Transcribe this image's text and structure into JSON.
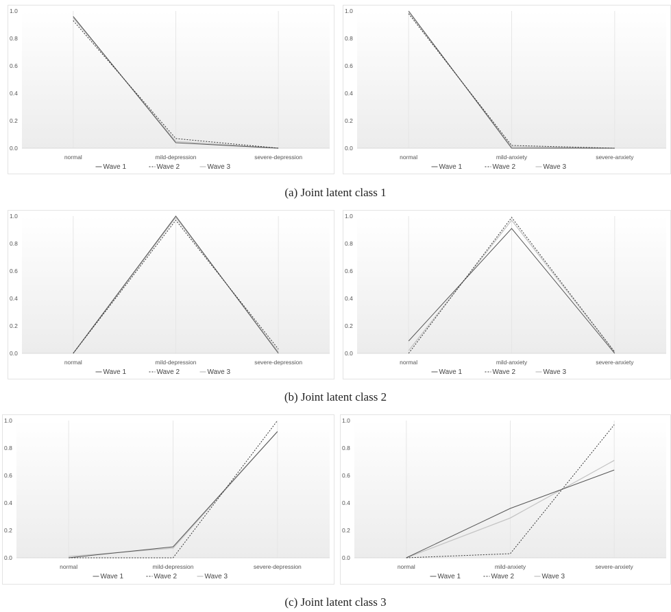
{
  "captions": [
    "(a)  Joint latent class 1",
    "(b)  Joint latent class 2",
    "(c)  Joint latent class 3"
  ],
  "legend": {
    "wave1": "Wave 1",
    "wave2": "Wave 2",
    "wave3": "Wave 3"
  },
  "colors": {
    "wave1": "#555555",
    "wave2": "#333333",
    "wave3": "#c4c4c4",
    "grid": "#e6e6e6",
    "tick_text": "#555555"
  },
  "chart_data": [
    {
      "type": "line",
      "title": "",
      "xlabel": "",
      "ylabel": "",
      "categories": [
        "normal",
        "mild-depression",
        "severe-depression"
      ],
      "ylim": [
        0,
        1
      ],
      "yticks": [
        "0.0",
        "0.2",
        "0.4",
        "0.6",
        "0.8",
        "1.0"
      ],
      "legend_position": "bottom",
      "series": [
        {
          "name": "Wave 1",
          "values": [
            0.96,
            0.04,
            0.0
          ]
        },
        {
          "name": "Wave 2",
          "values": [
            0.93,
            0.07,
            0.0
          ]
        },
        {
          "name": "Wave 3",
          "values": [
            0.95,
            0.05,
            0.0
          ]
        }
      ]
    },
    {
      "type": "line",
      "title": "",
      "xlabel": "",
      "ylabel": "",
      "categories": [
        "normal",
        "mild-anxiety",
        "severe-anxiety"
      ],
      "ylim": [
        0,
        1
      ],
      "yticks": [
        "0.0",
        "0.2",
        "0.4",
        "0.6",
        "0.8",
        "1.0"
      ],
      "legend_position": "bottom",
      "series": [
        {
          "name": "Wave 1",
          "values": [
            1.0,
            0.0,
            0.0
          ]
        },
        {
          "name": "Wave 2",
          "values": [
            0.98,
            0.02,
            0.0
          ]
        },
        {
          "name": "Wave 3",
          "values": [
            0.99,
            0.01,
            0.0
          ]
        }
      ]
    },
    {
      "type": "line",
      "title": "",
      "xlabel": "",
      "ylabel": "",
      "categories": [
        "normal",
        "mild-depression",
        "severe-depression"
      ],
      "ylim": [
        0,
        1
      ],
      "yticks": [
        "0.0",
        "0.2",
        "0.4",
        "0.6",
        "0.8",
        "1.0"
      ],
      "legend_position": "bottom",
      "series": [
        {
          "name": "Wave 1",
          "values": [
            0.0,
            1.0,
            0.0
          ]
        },
        {
          "name": "Wave 2",
          "values": [
            0.0,
            0.97,
            0.03
          ]
        },
        {
          "name": "Wave 3",
          "values": [
            0.0,
            0.99,
            0.01
          ]
        }
      ]
    },
    {
      "type": "line",
      "title": "",
      "xlabel": "",
      "ylabel": "",
      "categories": [
        "normal",
        "mild-anxiety",
        "severe-anxiety"
      ],
      "ylim": [
        0,
        1
      ],
      "yticks": [
        "0.0",
        "0.2",
        "0.4",
        "0.6",
        "0.8",
        "1.0"
      ],
      "legend_position": "bottom",
      "series": [
        {
          "name": "Wave 1",
          "values": [
            0.09,
            0.91,
            0.0
          ]
        },
        {
          "name": "Wave 2",
          "values": [
            0.0,
            0.99,
            0.01
          ]
        },
        {
          "name": "Wave 3",
          "values": [
            0.02,
            0.97,
            0.01
          ]
        }
      ]
    },
    {
      "type": "line",
      "title": "",
      "xlabel": "",
      "ylabel": "",
      "categories": [
        "normal",
        "mild-depression",
        "severe-depression"
      ],
      "ylim": [
        0,
        1
      ],
      "yticks": [
        "0.0",
        "0.2",
        "0.4",
        "0.6",
        "0.8",
        "1.0"
      ],
      "legend_position": "bottom",
      "series": [
        {
          "name": "Wave 1",
          "values": [
            0.0,
            0.08,
            0.92
          ]
        },
        {
          "name": "Wave 2",
          "values": [
            0.0,
            0.0,
            1.0
          ]
        },
        {
          "name": "Wave 3",
          "values": [
            0.01,
            0.07,
            0.92
          ]
        }
      ]
    },
    {
      "type": "line",
      "title": "",
      "xlabel": "",
      "ylabel": "",
      "categories": [
        "normal",
        "mild-anxiety",
        "severe-anxiety"
      ],
      "ylim": [
        0,
        1
      ],
      "yticks": [
        "0.0",
        "0.2",
        "0.4",
        "0.6",
        "0.8",
        "1.0"
      ],
      "legend_position": "bottom",
      "series": [
        {
          "name": "Wave 1",
          "values": [
            0.0,
            0.36,
            0.64
          ]
        },
        {
          "name": "Wave 2",
          "values": [
            0.0,
            0.03,
            0.97
          ]
        },
        {
          "name": "Wave 3",
          "values": [
            0.0,
            0.29,
            0.71
          ]
        }
      ]
    }
  ]
}
